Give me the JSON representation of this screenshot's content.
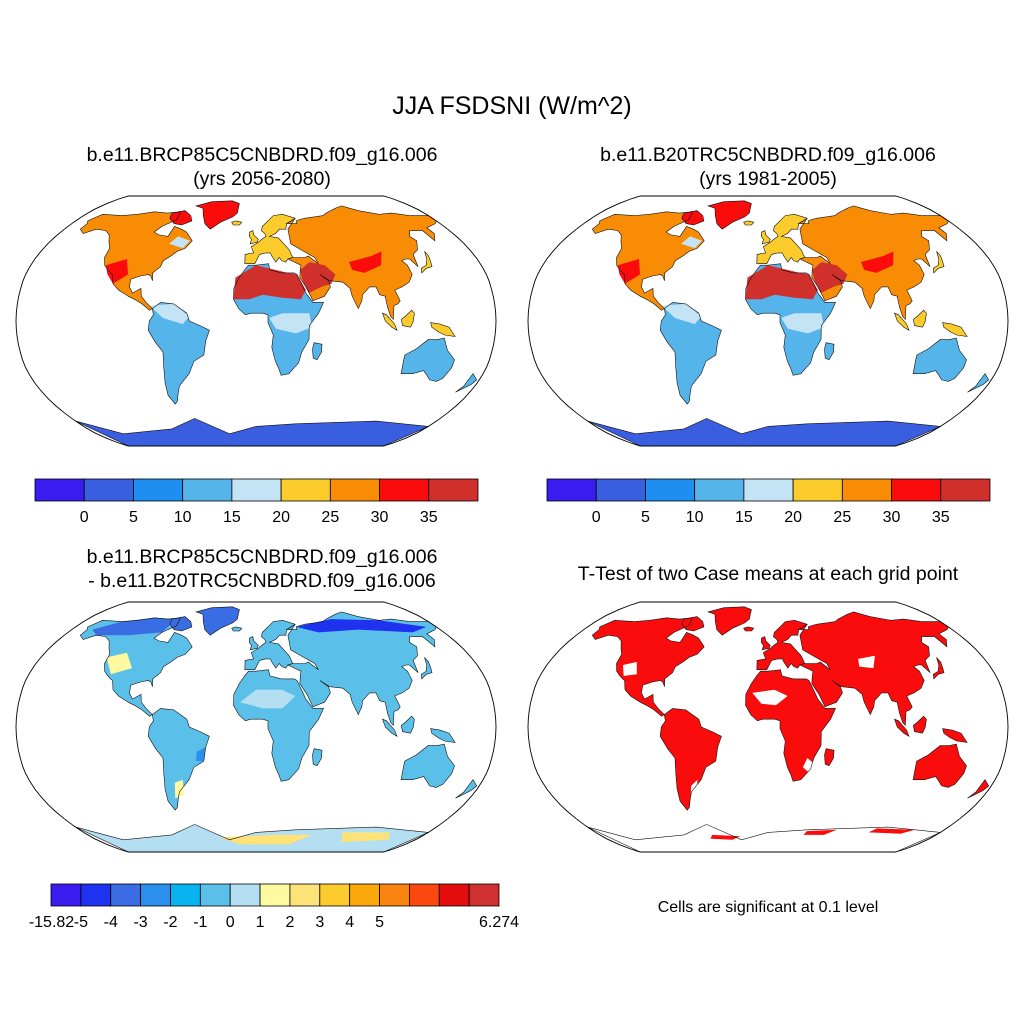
{
  "title": "JJA FSDSNI (W/m^2)",
  "panels": [
    {
      "title_lines": [
        "b.e11.BRCP85C5CNBDRD.f09_g16.006",
        "(yrs 2056-2080)"
      ],
      "colorbar": {
        "colors": [
          "#3a1cf0",
          "#3a5ee0",
          "#1e8ff0",
          "#55b4ea",
          "#c4e4f6",
          "#fbcb2c",
          "#f98c05",
          "#fb0c0c",
          "#d0302c"
        ],
        "labels": [
          "0",
          "5",
          "10",
          "15",
          "20",
          "25",
          "30",
          "35"
        ]
      }
    },
    {
      "title_lines": [
        "b.e11.B20TRC5CNBDRD.f09_g16.006",
        "(yrs 1981-2005)"
      ],
      "colorbar": {
        "colors": [
          "#3a1cf0",
          "#3a5ee0",
          "#1e8ff0",
          "#55b4ea",
          "#c4e4f6",
          "#fbcb2c",
          "#f98c05",
          "#fb0c0c",
          "#d0302c"
        ],
        "labels": [
          "0",
          "5",
          "10",
          "15",
          "20",
          "25",
          "30",
          "35"
        ]
      }
    },
    {
      "title_lines": [
        "b.e11.BRCP85C5CNBDRD.f09_g16.006",
        "- b.e11.B20TRC5CNBDRD.f09_g16.006"
      ],
      "colorbar": {
        "colors": [
          "#3a1cf0",
          "#1e32f0",
          "#3a6ce4",
          "#2a90ec",
          "#08b4f0",
          "#5ac0ea",
          "#b4def2",
          "#fffaa0",
          "#fde278",
          "#fbca2c",
          "#fba80a",
          "#f98410",
          "#fb4810",
          "#e40e0e",
          "#d03030"
        ],
        "labels": [
          "-15.82",
          "-5",
          "-4",
          "-3",
          "-2",
          "-1",
          "0",
          "1",
          "2",
          "3",
          "4",
          "5",
          "6.274"
        ]
      }
    },
    {
      "title_lines": [
        "T-Test of two Case means at each grid point"
      ],
      "note": "Cells are significant at 0.1 level"
    }
  ]
}
